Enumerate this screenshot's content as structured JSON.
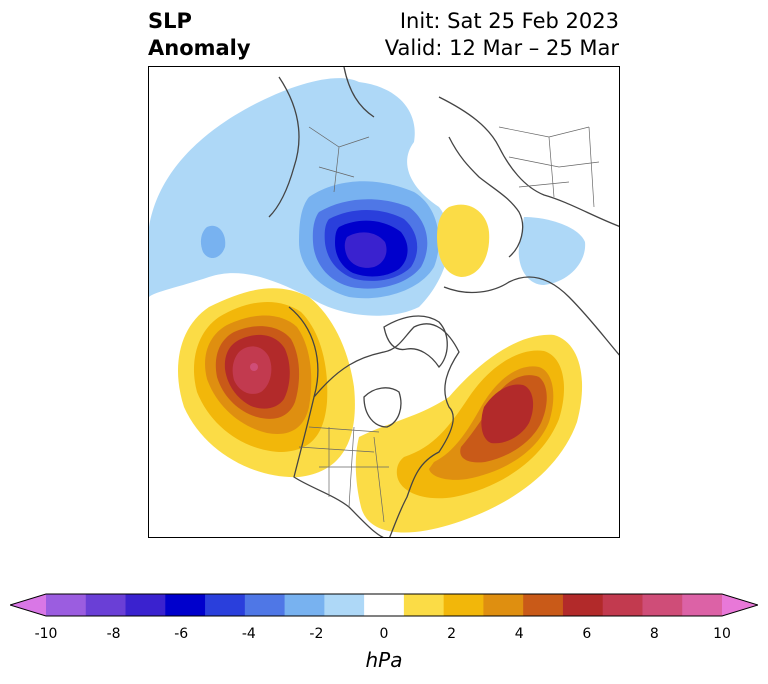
{
  "header": {
    "title_line1": "SLP",
    "title_line2": "Anomaly",
    "init_text": "Init: Sat 25 Feb 2023",
    "valid_text": "Valid: 12 Mar – 25 Mar"
  },
  "colorbar": {
    "unit": "hPa",
    "tick_labels": [
      "-10",
      "-8",
      "-6",
      "-4",
      "-2",
      "0",
      "2",
      "4",
      "6",
      "8",
      "10"
    ],
    "colors": [
      "#d977e6",
      "#9b5de0",
      "#6a3fd6",
      "#3a22cf",
      "#0000cc",
      "#2a3fdc",
      "#4f77e6",
      "#78b2f0",
      "#aed8f7",
      "#ffffff",
      "#fbdc46",
      "#f2b70a",
      "#df8f10",
      "#c95a18",
      "#b22a2a",
      "#c23a4f",
      "#cf4d78",
      "#dc62a6",
      "#e878d8"
    ]
  },
  "map": {
    "projection": "north-polar-stereographic",
    "features": [
      "coastlines",
      "country-borders",
      "us-state-borders"
    ],
    "anomalies": [
      {
        "name": "Arctic / Canadian Archipelago low",
        "min_hpa": -7
      },
      {
        "name": "North Pacific high",
        "max_hpa": 8
      },
      {
        "name": "North Atlantic high",
        "max_hpa": 6
      },
      {
        "name": "Western Russia weak high",
        "max_hpa": 1
      },
      {
        "name": "Eastern Siberia weak low",
        "min_hpa": -1
      }
    ]
  }
}
